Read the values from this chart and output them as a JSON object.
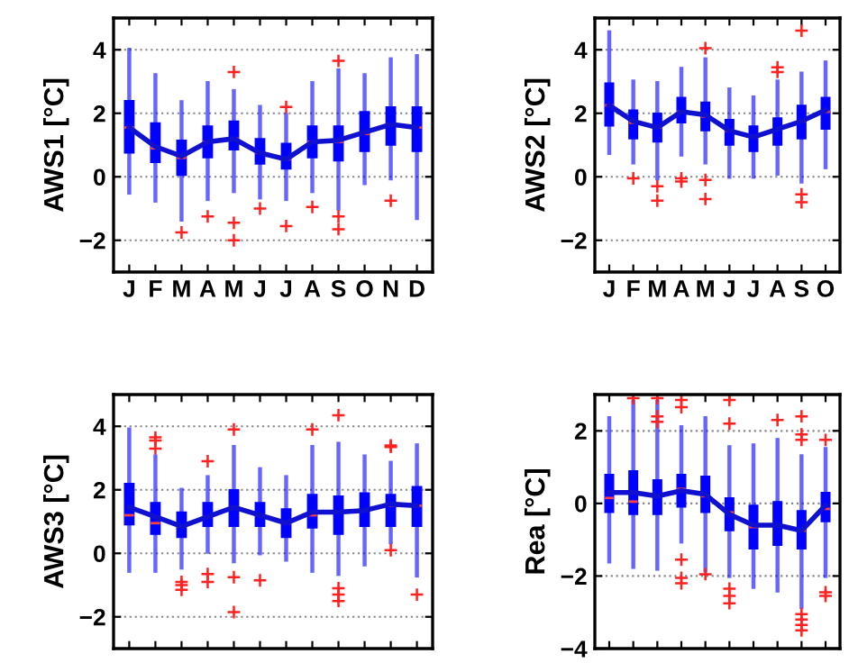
{
  "chart_data": [
    {
      "type": "box",
      "ylabel": "AWS1 [°C]",
      "categories": [
        "J",
        "F",
        "M",
        "A",
        "M",
        "J",
        "J",
        "A",
        "S",
        "O",
        "N",
        "D"
      ],
      "ylim": [
        -3,
        5
      ],
      "yticks": [
        -2,
        0,
        2,
        4
      ],
      "grid": "y",
      "series": [
        {
          "color": "#0000ff",
          "boxes": [
            {
              "low": -0.5,
              "q1": 0.75,
              "median": 1.55,
              "q3": 2.4,
              "high": 4.0
            },
            {
              "low": -0.75,
              "q1": 0.45,
              "median": 0.9,
              "q3": 1.7,
              "high": 3.2
            },
            {
              "low": -1.35,
              "q1": 0.05,
              "median": 0.6,
              "q3": 1.15,
              "high": 2.35,
              "outliers": [
                -1.75
              ]
            },
            {
              "low": -0.7,
              "q1": 0.6,
              "median": 1.1,
              "q3": 1.6,
              "high": 2.95,
              "outliers": [
                -1.25
              ]
            },
            {
              "low": -0.45,
              "q1": 0.85,
              "median": 1.2,
              "q3": 1.75,
              "high": 2.7,
              "outliers": [
                3.3,
                -1.45,
                -2.0
              ]
            },
            {
              "low": -0.65,
              "q1": 0.4,
              "median": 0.75,
              "q3": 1.2,
              "high": 2.2,
              "outliers": [
                -1.0
              ]
            },
            {
              "low": -0.7,
              "q1": 0.25,
              "median": 0.55,
              "q3": 1.05,
              "high": 1.95,
              "outliers": [
                2.2,
                -1.55
              ]
            },
            {
              "low": -0.45,
              "q1": 0.6,
              "median": 1.1,
              "q3": 1.6,
              "high": 2.95,
              "outliers": [
                -0.95
              ]
            },
            {
              "low": -1.0,
              "q1": 0.5,
              "median": 1.1,
              "q3": 1.6,
              "high": 3.35,
              "outliers": [
                3.65,
                -1.25,
                -1.65
              ]
            },
            {
              "low": -0.2,
              "q1": 0.8,
              "median": 1.35,
              "q3": 2.05,
              "high": 3.2
            },
            {
              "low": -0.05,
              "q1": 1.0,
              "median": 1.65,
              "q3": 2.2,
              "high": 3.7,
              "outliers": [
                -0.75
              ]
            },
            {
              "low": -1.3,
              "q1": 0.8,
              "median": 1.55,
              "q3": 2.2,
              "high": 3.8
            }
          ]
        },
        {
          "type": "line",
          "color": "#1010d0",
          "values": [
            1.55,
            0.95,
            0.65,
            1.1,
            1.2,
            0.75,
            0.55,
            1.1,
            1.15,
            1.4,
            1.65,
            1.55
          ]
        }
      ]
    },
    {
      "type": "box",
      "ylabel": "AWS2 [°C]",
      "categories": [
        "J",
        "F",
        "M",
        "A",
        "M",
        "J",
        "J",
        "A",
        "S",
        "O"
      ],
      "ylim": [
        -3,
        5
      ],
      "yticks": [
        -2,
        0,
        2,
        4
      ],
      "grid": "y",
      "series": [
        {
          "color": "#0000ff",
          "boxes": [
            {
              "low": 0.75,
              "q1": 1.6,
              "median": 2.25,
              "q3": 2.95,
              "high": 4.55
            },
            {
              "low": 0.45,
              "q1": 1.2,
              "median": 1.7,
              "q3": 2.1,
              "high": 3.0,
              "outliers": [
                -0.05
              ]
            },
            {
              "low": -0.05,
              "q1": 1.1,
              "median": 1.55,
              "q3": 2.0,
              "high": 2.95,
              "outliers": [
                -0.3,
                -0.75
              ]
            },
            {
              "low": 0.7,
              "q1": 1.7,
              "median": 2.05,
              "q3": 2.5,
              "high": 3.4,
              "outliers": [
                -0.05,
                -0.15
              ]
            },
            {
              "low": 0.45,
              "q1": 1.45,
              "median": 1.9,
              "q3": 2.35,
              "high": 3.7,
              "outliers": [
                4.05,
                -0.1,
                -0.7
              ]
            },
            {
              "low": 0.0,
              "q1": 1.0,
              "median": 1.45,
              "q3": 1.8,
              "high": 2.75
            },
            {
              "low": 0.0,
              "q1": 0.8,
              "median": 1.25,
              "q3": 1.6,
              "high": 2.5
            },
            {
              "low": 0.1,
              "q1": 1.0,
              "median": 1.5,
              "q3": 1.85,
              "high": 3.0,
              "outliers": [
                3.45,
                3.3
              ]
            },
            {
              "low": -0.15,
              "q1": 1.2,
              "median": 1.75,
              "q3": 2.25,
              "high": 3.25,
              "outliers": [
                4.6,
                -0.55,
                -0.8
              ]
            },
            {
              "low": 0.3,
              "q1": 1.5,
              "median": 2.05,
              "q3": 2.5,
              "high": 3.6
            }
          ]
        },
        {
          "type": "line",
          "color": "#1010d0",
          "values": [
            2.25,
            1.75,
            1.55,
            2.05,
            1.95,
            1.45,
            1.25,
            1.5,
            1.75,
            2.1
          ]
        }
      ]
    },
    {
      "type": "box",
      "ylabel": "AWS3 [°C]",
      "categories": [
        null,
        null,
        null,
        null,
        null,
        null,
        null,
        null,
        null,
        null,
        null,
        null
      ],
      "ylim": [
        -3,
        5
      ],
      "yticks": [
        -2,
        0,
        2,
        4
      ],
      "grid": "y",
      "series": [
        {
          "color": "#0000ff",
          "boxes": [
            {
              "low": -0.55,
              "q1": 0.9,
              "median": 1.2,
              "q3": 2.2,
              "high": 3.9
            },
            {
              "low": -0.55,
              "q1": 0.6,
              "median": 0.95,
              "q3": 1.6,
              "high": 3.05,
              "outliers": [
                3.65,
                3.55,
                3.3
              ]
            },
            {
              "low": -0.45,
              "q1": 0.5,
              "median": 0.85,
              "q3": 1.3,
              "high": 2.0,
              "outliers": [
                -0.9,
                -1.0,
                -1.15
              ]
            },
            {
              "low": 0.05,
              "q1": 0.85,
              "median": 1.15,
              "q3": 1.6,
              "high": 2.4,
              "outliers": [
                2.9,
                -0.65,
                -0.9
              ]
            },
            {
              "low": -0.25,
              "q1": 0.85,
              "median": 1.45,
              "q3": 2.0,
              "high": 3.35,
              "outliers": [
                3.9,
                -0.75,
                -1.85
              ]
            },
            {
              "low": 0.0,
              "q1": 0.85,
              "median": 1.2,
              "q3": 1.6,
              "high": 2.65,
              "outliers": [
                -0.85
              ]
            },
            {
              "low": -0.2,
              "q1": 0.5,
              "median": 0.95,
              "q3": 1.4,
              "high": 2.4
            },
            {
              "low": -0.55,
              "q1": 0.8,
              "median": 1.2,
              "q3": 1.85,
              "high": 3.35,
              "outliers": [
                3.9
              ]
            },
            {
              "low": -0.65,
              "q1": 0.6,
              "median": 1.3,
              "q3": 1.8,
              "high": 3.45,
              "outliers": [
                4.35,
                -1.1,
                -1.3,
                -1.5
              ]
            },
            {
              "low": -0.35,
              "q1": 0.85,
              "median": 1.35,
              "q3": 1.9,
              "high": 3.05
            },
            {
              "low": 0.35,
              "q1": 0.85,
              "median": 1.5,
              "q3": 1.85,
              "high": 2.85,
              "outliers": [
                3.4,
                3.35,
                0.1
              ]
            },
            {
              "low": -0.7,
              "q1": 0.85,
              "median": 1.5,
              "q3": 2.1,
              "high": 3.4,
              "outliers": [
                -1.3
              ]
            }
          ]
        },
        {
          "type": "line",
          "color": "#1010d0",
          "values": [
            1.45,
            1.15,
            0.85,
            1.15,
            1.45,
            1.2,
            0.95,
            1.3,
            1.3,
            1.35,
            1.55,
            1.5
          ]
        }
      ]
    },
    {
      "type": "box",
      "ylabel": "Rea [°C]",
      "categories": [
        null,
        null,
        null,
        null,
        null,
        null,
        null,
        null,
        null,
        null
      ],
      "ylim": [
        -4,
        3
      ],
      "yticks": [
        -4,
        -2,
        0,
        2
      ],
      "grid": "y",
      "series": [
        {
          "color": "#0000ff",
          "boxes": [
            {
              "low": -1.6,
              "q1": -0.25,
              "median": 0.15,
              "q3": 0.8,
              "high": 2.35
            },
            {
              "low": -1.75,
              "q1": -0.3,
              "median": 0.05,
              "q3": 0.9,
              "high": 2.8,
              "outliers": [
                2.9
              ]
            },
            {
              "low": -1.8,
              "q1": -0.3,
              "median": 0.2,
              "q3": 0.65,
              "high": 2.8,
              "outliers": [
                2.9,
                2.4,
                2.25
              ]
            },
            {
              "low": -1.05,
              "q1": -0.1,
              "median": 0.4,
              "q3": 0.8,
              "high": 2.1,
              "outliers": [
                2.85,
                2.65,
                -1.55,
                -2.05,
                -2.2
              ]
            },
            {
              "low": -1.85,
              "q1": -0.25,
              "median": 0.2,
              "q3": 0.75,
              "high": 2.35,
              "outliers": [
                -1.95
              ]
            },
            {
              "low": -2.0,
              "q1": -0.75,
              "median": -0.25,
              "q3": 0.15,
              "high": 1.55,
              "outliers": [
                2.85,
                2.2,
                -2.35,
                -2.55,
                -2.75
              ]
            },
            {
              "low": -2.3,
              "q1": -1.25,
              "median": -0.65,
              "q3": -0.05,
              "high": 1.6
            },
            {
              "low": -2.4,
              "q1": -1.15,
              "median": -0.6,
              "q3": 0.05,
              "high": 1.75,
              "outliers": [
                2.3
              ]
            },
            {
              "low": -2.85,
              "q1": -1.25,
              "median": -0.75,
              "q3": -0.2,
              "high": 1.3,
              "outliers": [
                2.4,
                1.9,
                1.75,
                -3.05,
                -3.2,
                -3.35,
                -3.5
              ]
            },
            {
              "low": -2.0,
              "q1": -0.5,
              "median": -0.15,
              "q3": 0.3,
              "high": 1.5,
              "outliers": [
                1.75,
                -2.45,
                -2.55
              ]
            }
          ]
        },
        {
          "type": "line",
          "color": "#1010d0",
          "values": [
            0.3,
            0.3,
            0.2,
            0.35,
            0.25,
            -0.3,
            -0.6,
            -0.6,
            -0.75,
            -0.05
          ]
        }
      ]
    }
  ]
}
